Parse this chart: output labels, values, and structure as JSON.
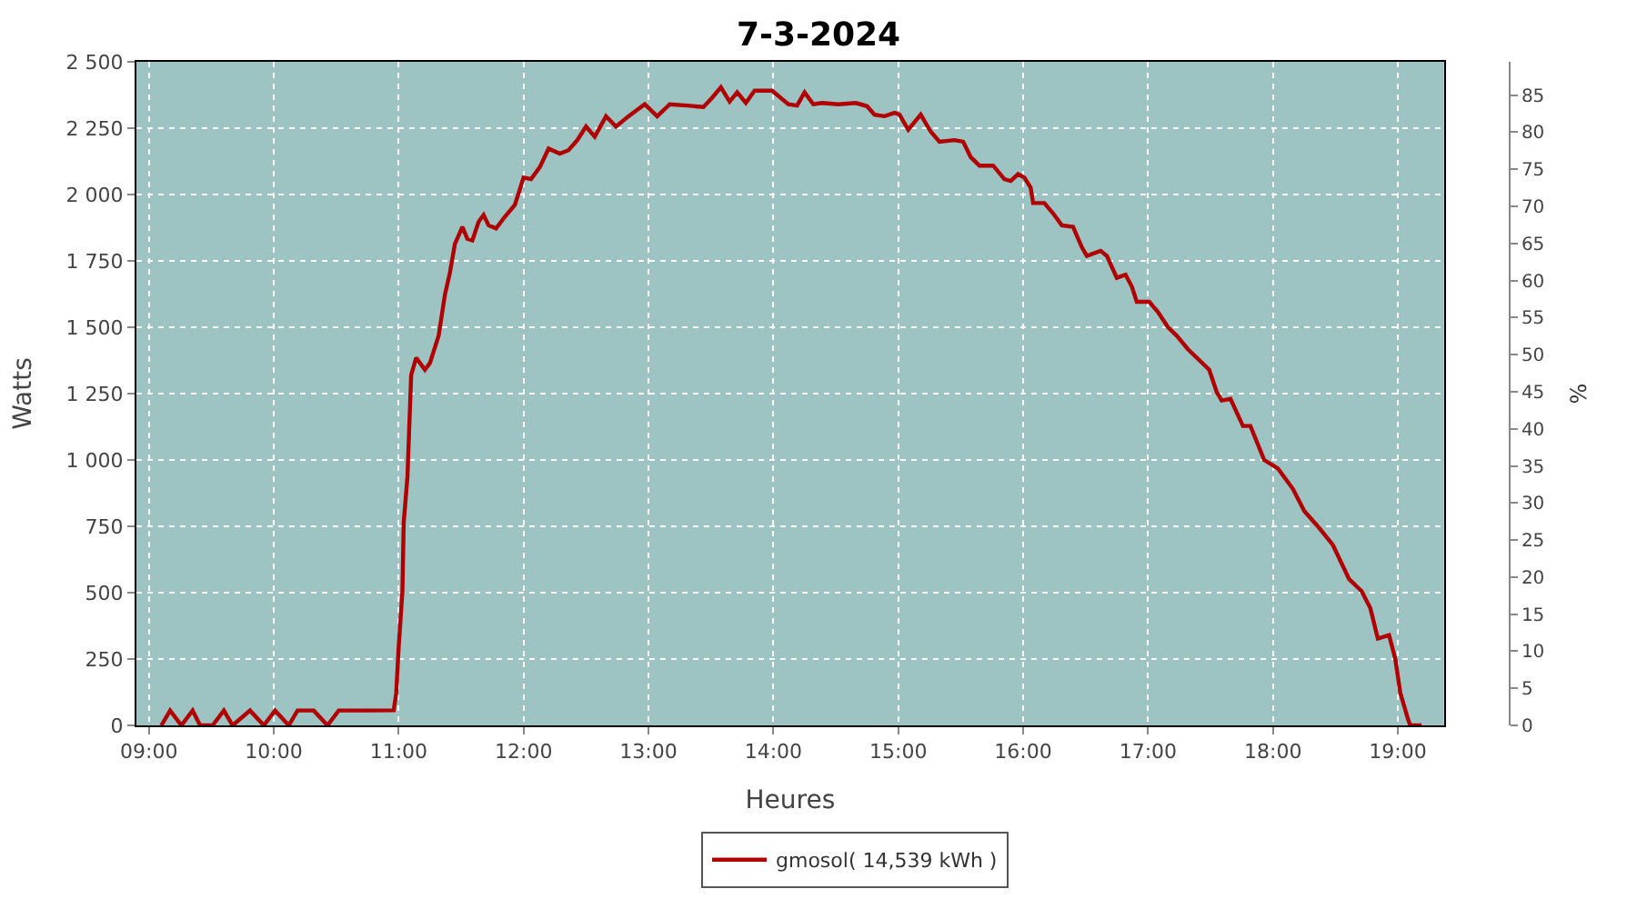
{
  "chart_data": {
    "type": "line",
    "title": "7-3-2024",
    "xlabel": "Heures",
    "ylabel": "Watts",
    "y2label": "%",
    "xlim": [
      8.9,
      19.37
    ],
    "xticks": [
      {
        "value": 9,
        "label": "09:00"
      },
      {
        "value": 10,
        "label": "10:00"
      },
      {
        "value": 11,
        "label": "11:00"
      },
      {
        "value": 12,
        "label": "12:00"
      },
      {
        "value": 13,
        "label": "13:00"
      },
      {
        "value": 14,
        "label": "14:00"
      },
      {
        "value": 15,
        "label": "15:00"
      },
      {
        "value": 16,
        "label": "16:00"
      },
      {
        "value": 17,
        "label": "17:00"
      },
      {
        "value": 18,
        "label": "18:00"
      },
      {
        "value": 19,
        "label": "19:00"
      }
    ],
    "ylim": [
      0,
      2500
    ],
    "yticks": [
      0,
      250,
      500,
      750,
      {
        "value": 1000,
        "label": "1 000"
      },
      {
        "value": 1250,
        "label": "1 250"
      },
      {
        "value": 1500,
        "label": "1 500"
      },
      {
        "value": 1750,
        "label": "1 750"
      },
      {
        "value": 2000,
        "label": "2 000"
      },
      {
        "value": 2250,
        "label": "2 250"
      },
      {
        "value": 2500,
        "label": "2 500"
      }
    ],
    "y2lim": [
      0,
      89.5
    ],
    "y2ticks": [
      0,
      5,
      10,
      15,
      20,
      25,
      30,
      35,
      40,
      45,
      50,
      55,
      60,
      65,
      70,
      75,
      80,
      85
    ],
    "grid": true,
    "legend": "bottom",
    "marker": "none",
    "line_style": "solid",
    "series": [
      {
        "name": "gmosol( 14,539 kWh )",
        "color": "#b00000",
        "x": [
          9.1,
          9.17,
          9.26,
          9.35,
          9.41,
          9.51,
          9.6,
          9.67,
          9.81,
          9.92,
          10.01,
          10.12,
          10.19,
          10.32,
          10.43,
          10.52,
          10.73,
          10.96,
          10.98,
          11.0,
          11.03,
          11.04,
          11.07,
          11.1,
          11.14,
          11.21,
          11.25,
          11.32,
          11.37,
          11.41,
          11.45,
          11.51,
          11.55,
          11.59,
          11.64,
          11.68,
          11.72,
          11.78,
          11.85,
          11.93,
          12.0,
          12.06,
          12.13,
          12.2,
          12.29,
          12.36,
          12.43,
          12.5,
          12.57,
          12.66,
          12.74,
          12.84,
          12.97,
          13.07,
          13.17,
          13.31,
          13.44,
          13.51,
          13.58,
          13.65,
          13.71,
          13.78,
          13.85,
          13.99,
          14.12,
          14.19,
          14.25,
          14.32,
          14.39,
          14.52,
          14.66,
          14.75,
          14.81,
          14.89,
          14.97,
          15.01,
          15.08,
          15.18,
          15.26,
          15.33,
          15.45,
          15.52,
          15.58,
          15.65,
          15.76,
          15.85,
          15.9,
          15.96,
          16.01,
          16.06,
          16.08,
          16.17,
          16.24,
          16.31,
          16.4,
          16.47,
          16.51,
          16.62,
          16.67,
          16.75,
          16.82,
          16.87,
          16.91,
          17.01,
          17.08,
          17.16,
          17.23,
          17.32,
          17.49,
          17.55,
          17.59,
          17.66,
          17.76,
          17.82,
          17.93,
          18.04,
          18.16,
          18.25,
          18.37,
          18.48,
          18.61,
          18.71,
          18.78,
          18.84,
          18.93,
          18.98,
          19.02,
          19.08,
          19.1,
          19.19
        ],
        "values": [
          0,
          56,
          0,
          56,
          0,
          0,
          56,
          0,
          56,
          0,
          56,
          0,
          56,
          56,
          0,
          56,
          56,
          57,
          120,
          295,
          506,
          763,
          936,
          1320,
          1385,
          1340,
          1365,
          1468,
          1622,
          1705,
          1814,
          1878,
          1833,
          1827,
          1897,
          1923,
          1884,
          1872,
          1916,
          1961,
          2064,
          2058,
          2103,
          2173,
          2154,
          2167,
          2205,
          2256,
          2218,
          2295,
          2256,
          2295,
          2340,
          2295,
          2340,
          2335,
          2330,
          2365,
          2404,
          2350,
          2385,
          2345,
          2391,
          2391,
          2340,
          2335,
          2385,
          2340,
          2345,
          2340,
          2345,
          2333,
          2301,
          2295,
          2308,
          2301,
          2244,
          2301,
          2237,
          2199,
          2205,
          2199,
          2141,
          2109,
          2109,
          2058,
          2051,
          2077,
          2064,
          2026,
          1968,
          1968,
          1929,
          1884,
          1878,
          1801,
          1769,
          1788,
          1769,
          1686,
          1698,
          1654,
          1596,
          1596,
          1557,
          1500,
          1468,
          1417,
          1340,
          1256,
          1224,
          1230,
          1128,
          1128,
          1000,
          968,
          891,
          808,
          744,
          680,
          551,
          506,
          442,
          327,
          340,
          250,
          122,
          26,
          0,
          0
        ]
      }
    ]
  }
}
